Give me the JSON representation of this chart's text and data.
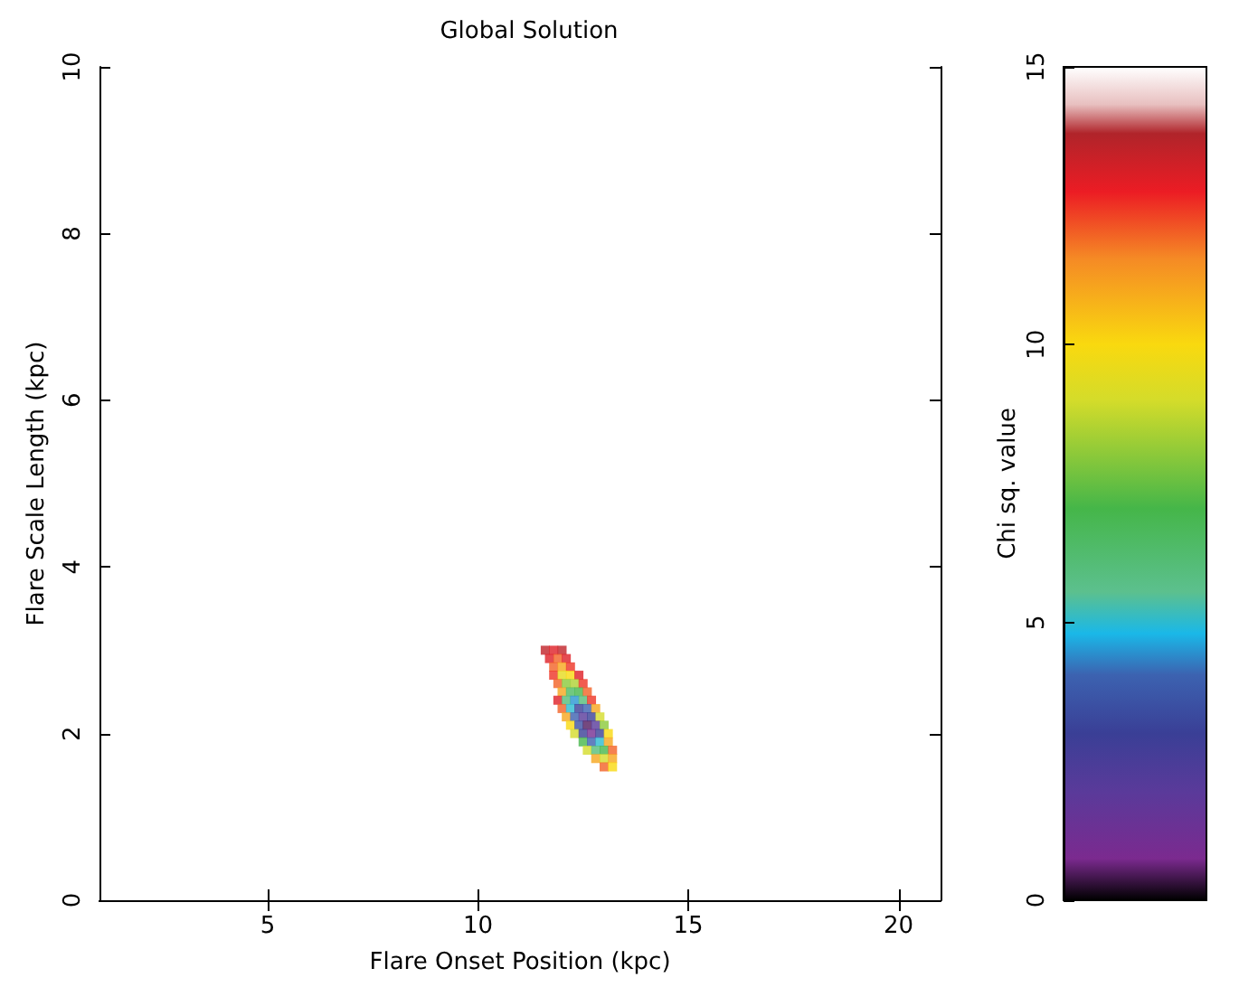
{
  "chart_data": {
    "type": "scatter",
    "title": "Global Solution",
    "xlabel": "Flare Onset Position (kpc)",
    "ylabel": "Flare Scale Length (kpc)",
    "clabel": "Chi sq. value",
    "marker": "square",
    "grid": false,
    "xlim": [
      1,
      21
    ],
    "xticks": [
      5,
      10,
      15,
      20
    ],
    "ylim": [
      0,
      10
    ],
    "yticks": [
      0,
      2,
      4,
      6,
      8,
      10
    ],
    "clim": [
      0,
      15
    ],
    "cticks": [
      0,
      5,
      10,
      15
    ],
    "x": [
      11.6,
      11.8,
      12.0,
      11.7,
      11.9,
      12.1,
      11.8,
      12.0,
      12.2,
      11.8,
      12.0,
      12.2,
      12.4,
      11.9,
      12.1,
      12.3,
      12.5,
      12.0,
      12.2,
      12.4,
      12.6,
      11.9,
      12.1,
      12.3,
      12.5,
      12.7,
      12.0,
      12.2,
      12.4,
      12.6,
      12.8,
      12.1,
      12.3,
      12.5,
      12.7,
      12.9,
      12.2,
      12.4,
      12.6,
      12.8,
      13.0,
      12.3,
      12.5,
      12.7,
      12.9,
      13.1,
      12.5,
      12.7,
      12.9,
      13.1,
      12.6,
      12.8,
      13.0,
      13.2,
      12.8,
      13.0,
      13.2,
      13.0,
      13.2
    ],
    "values": [
      3.0,
      3.0,
      3.0,
      2.9,
      2.9,
      2.9,
      2.8,
      2.8,
      2.8,
      2.7,
      2.7,
      2.7,
      2.7,
      2.6,
      2.6,
      2.6,
      2.6,
      2.5,
      2.5,
      2.5,
      2.5,
      2.4,
      2.4,
      2.4,
      2.4,
      2.4,
      2.3,
      2.3,
      2.3,
      2.3,
      2.3,
      2.2,
      2.2,
      2.2,
      2.2,
      2.2,
      2.1,
      2.1,
      2.1,
      2.1,
      2.1,
      2.0,
      2.0,
      2.0,
      2.0,
      2.0,
      1.9,
      1.9,
      1.9,
      1.9,
      1.8,
      1.8,
      1.8,
      1.8,
      1.7,
      1.7,
      1.7,
      1.6,
      1.6
    ],
    "cvalues": [
      13.5,
      13,
      13.5,
      13,
      12,
      13,
      12,
      11,
      12.5,
      12.5,
      9.5,
      10,
      13,
      12,
      8,
      8.5,
      12.5,
      11,
      6.5,
      7,
      12,
      13,
      6,
      4.5,
      6,
      12.5,
      12,
      5,
      3,
      4,
      11,
      11,
      4,
      2,
      3,
      9,
      10,
      3.5,
      0.5,
      2,
      8,
      9,
      3,
      1,
      3,
      10,
      7,
      4,
      5,
      11,
      9,
      6,
      7,
      12,
      11,
      9,
      11,
      12,
      10
    ]
  }
}
